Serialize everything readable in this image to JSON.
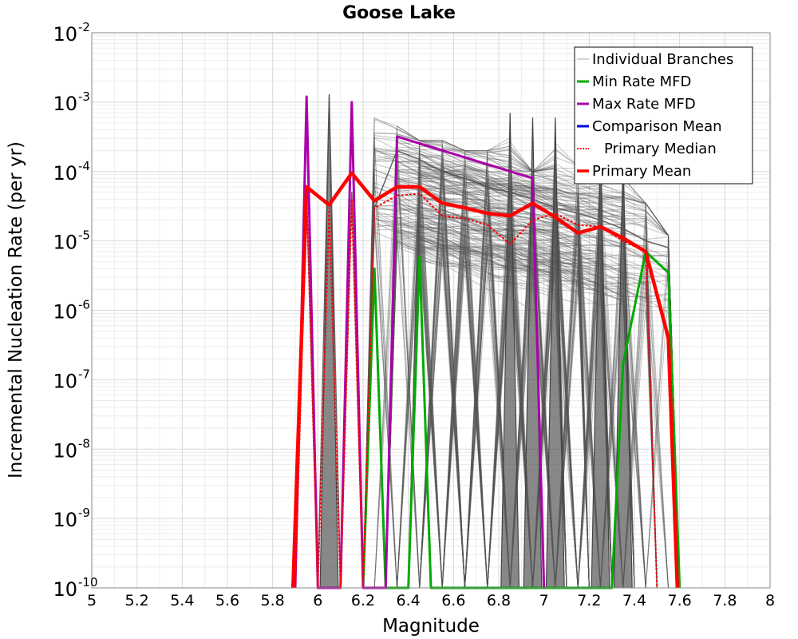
{
  "chart_data": {
    "type": "line",
    "title": "Goose Lake",
    "xlabel": "Magnitude",
    "ylabel": "Incremental Nucleation Rate (per yr)",
    "xlim": [
      5,
      8
    ],
    "ylim": [
      1e-10,
      0.01
    ],
    "y_scale": "log",
    "grid": true,
    "legend_position": "top-right",
    "x_ticks": [
      "5",
      "5.2",
      "5.4",
      "5.6",
      "5.8",
      "6",
      "6.2",
      "6.4",
      "6.6",
      "6.8",
      "7",
      "7.2",
      "7.4",
      "7.6",
      "7.8",
      "8"
    ],
    "y_ticks": [
      {
        "base": "10",
        "exp": "-2"
      },
      {
        "base": "10",
        "exp": "-3"
      },
      {
        "base": "10",
        "exp": "-4"
      },
      {
        "base": "10",
        "exp": "-5"
      },
      {
        "base": "10",
        "exp": "-6"
      },
      {
        "base": "10",
        "exp": "-7"
      },
      {
        "base": "10",
        "exp": "-8"
      },
      {
        "base": "10",
        "exp": "-9"
      },
      {
        "base": "10",
        "exp": "-10"
      }
    ],
    "branch_band": {
      "upper_x": [
        6.25,
        6.35,
        6.55,
        6.75,
        6.85,
        6.95,
        7.05,
        7.15,
        7.25,
        7.35,
        7.45,
        7.55
      ],
      "upper_y": [
        0.0006,
        0.00045,
        0.00028,
        0.0002,
        0.0007,
        0.0001,
        0.0006,
        0.00012,
        0.00015,
        8e-05,
        3.5e-05,
        1.2e-05
      ],
      "spike_x": [
        6.05,
        6.85,
        6.95,
        7.05,
        7.25,
        7.35
      ],
      "spike_y": [
        0.0013,
        0.0007,
        0.0006,
        0.0006,
        0.0003,
        0.0002
      ]
    },
    "series": [
      {
        "name": "Individual Branches",
        "color": "#555555",
        "x": [
          5.9,
          5.95,
          6.0,
          6.05,
          6.1,
          6.15,
          6.2,
          6.25,
          6.35,
          6.45,
          6.55,
          6.65,
          6.75,
          6.85,
          6.95,
          7.05,
          7.15,
          7.25,
          7.35,
          7.45,
          7.55,
          7.6
        ],
        "y": [
          1e-10,
          5e-05,
          1e-10,
          0.0012,
          1e-10,
          5e-05,
          1e-10,
          3e-05,
          0.0002,
          0.00015,
          0.0001,
          8e-05,
          6e-05,
          5e-05,
          4e-05,
          3e-05,
          2.5e-05,
          2e-05,
          1.5e-05,
          1e-05,
          8e-06,
          1e-10
        ]
      },
      {
        "name": "Min Rate MFD",
        "color": "#00aa00",
        "x": [
          6.2,
          6.25,
          6.3,
          6.4,
          6.45,
          6.5,
          7.3,
          7.35,
          7.45,
          7.55,
          7.6
        ],
        "y": [
          1e-10,
          4e-06,
          1e-10,
          1e-10,
          6e-06,
          1e-10,
          1e-10,
          1.7e-07,
          7e-06,
          3.5e-06,
          1e-10
        ]
      },
      {
        "name": "Max Rate MFD",
        "color": "#aa00aa",
        "x": [
          5.9,
          5.95,
          6.0,
          6.1,
          6.15,
          6.2,
          6.3,
          6.35,
          6.95,
          7.0
        ],
        "y": [
          1e-10,
          0.0012,
          1e-10,
          1e-10,
          0.001,
          1e-10,
          1e-10,
          0.00032,
          8e-05,
          1e-10
        ]
      },
      {
        "name": "Comparison Mean",
        "color": "#0000dd",
        "x": [],
        "y": []
      },
      {
        "name": "Primary Median",
        "color": "#ff0000",
        "x": [
          5.9,
          5.95,
          6.0,
          6.05,
          6.1,
          6.15,
          6.2,
          6.25,
          6.35,
          6.45,
          6.55,
          6.65,
          6.75,
          6.85,
          6.95,
          7.05,
          7.15,
          7.25,
          7.35,
          7.45,
          7.5
        ],
        "y": [
          1e-10,
          5e-05,
          1e-10,
          3e-05,
          1e-10,
          4e-05,
          1e-10,
          3e-05,
          4.5e-05,
          4.8e-05,
          2.3e-05,
          2.1e-05,
          1.7e-05,
          9e-06,
          2e-05,
          2.5e-05,
          1.7e-05,
          1.6e-05,
          1e-05,
          7e-06,
          1e-10
        ]
      },
      {
        "name": "Primary Mean",
        "color": "#ff0000",
        "x": [
          5.89,
          5.95,
          6.05,
          6.15,
          6.25,
          6.35,
          6.45,
          6.55,
          6.65,
          6.75,
          6.85,
          6.95,
          7.05,
          7.15,
          7.25,
          7.35,
          7.45,
          7.55,
          7.59
        ],
        "y": [
          1e-10,
          6e-05,
          3.3e-05,
          9.5e-05,
          3.8e-05,
          6e-05,
          6e-05,
          3.5e-05,
          3e-05,
          2.5e-05,
          2.3e-05,
          3.5e-05,
          2.2e-05,
          1.3e-05,
          1.6e-05,
          1.1e-05,
          7e-06,
          4e-07,
          1e-10
        ]
      }
    ]
  }
}
